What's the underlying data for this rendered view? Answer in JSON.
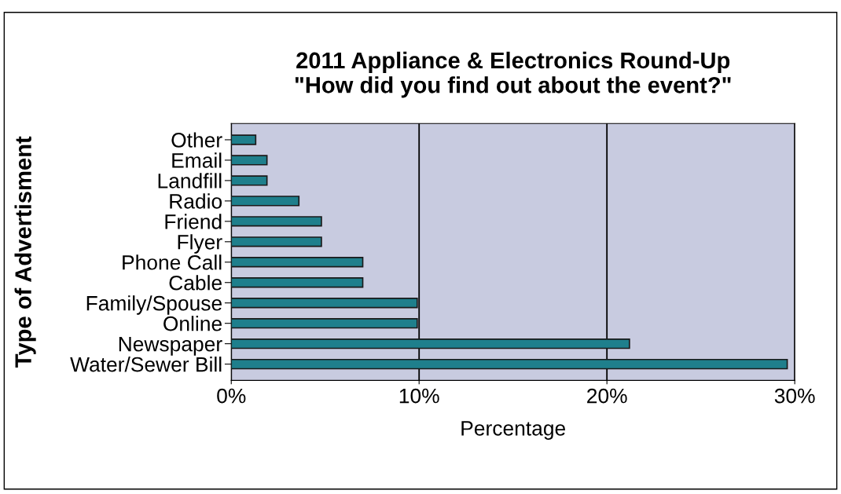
{
  "chart_data": {
    "type": "bar",
    "orientation": "horizontal",
    "title": "2011 Appliance & Electronics Round-Up\n\"How did you find out about the event?\"",
    "xlabel": "Percentage",
    "ylabel": "Type of Advertisment",
    "categories": [
      "Other",
      "Email",
      "Landfill",
      "Radio",
      "Friend",
      "Flyer",
      "Phone Call",
      "Cable",
      "Family/Spouse",
      "Online",
      "Newspaper",
      "Water/Sewer Bill"
    ],
    "values": [
      1.3,
      1.9,
      1.9,
      3.6,
      4.8,
      4.8,
      7.0,
      7.0,
      9.9,
      9.9,
      21.2,
      29.6
    ],
    "color": "#1f7f8c",
    "xlim": [
      0,
      30
    ],
    "xticks": [
      {
        "value": 0,
        "label": "0%"
      },
      {
        "value": 10,
        "label": "10%"
      },
      {
        "value": 20,
        "label": "20%"
      },
      {
        "value": 30,
        "label": "30%"
      }
    ],
    "grid": "x",
    "legend": false
  }
}
